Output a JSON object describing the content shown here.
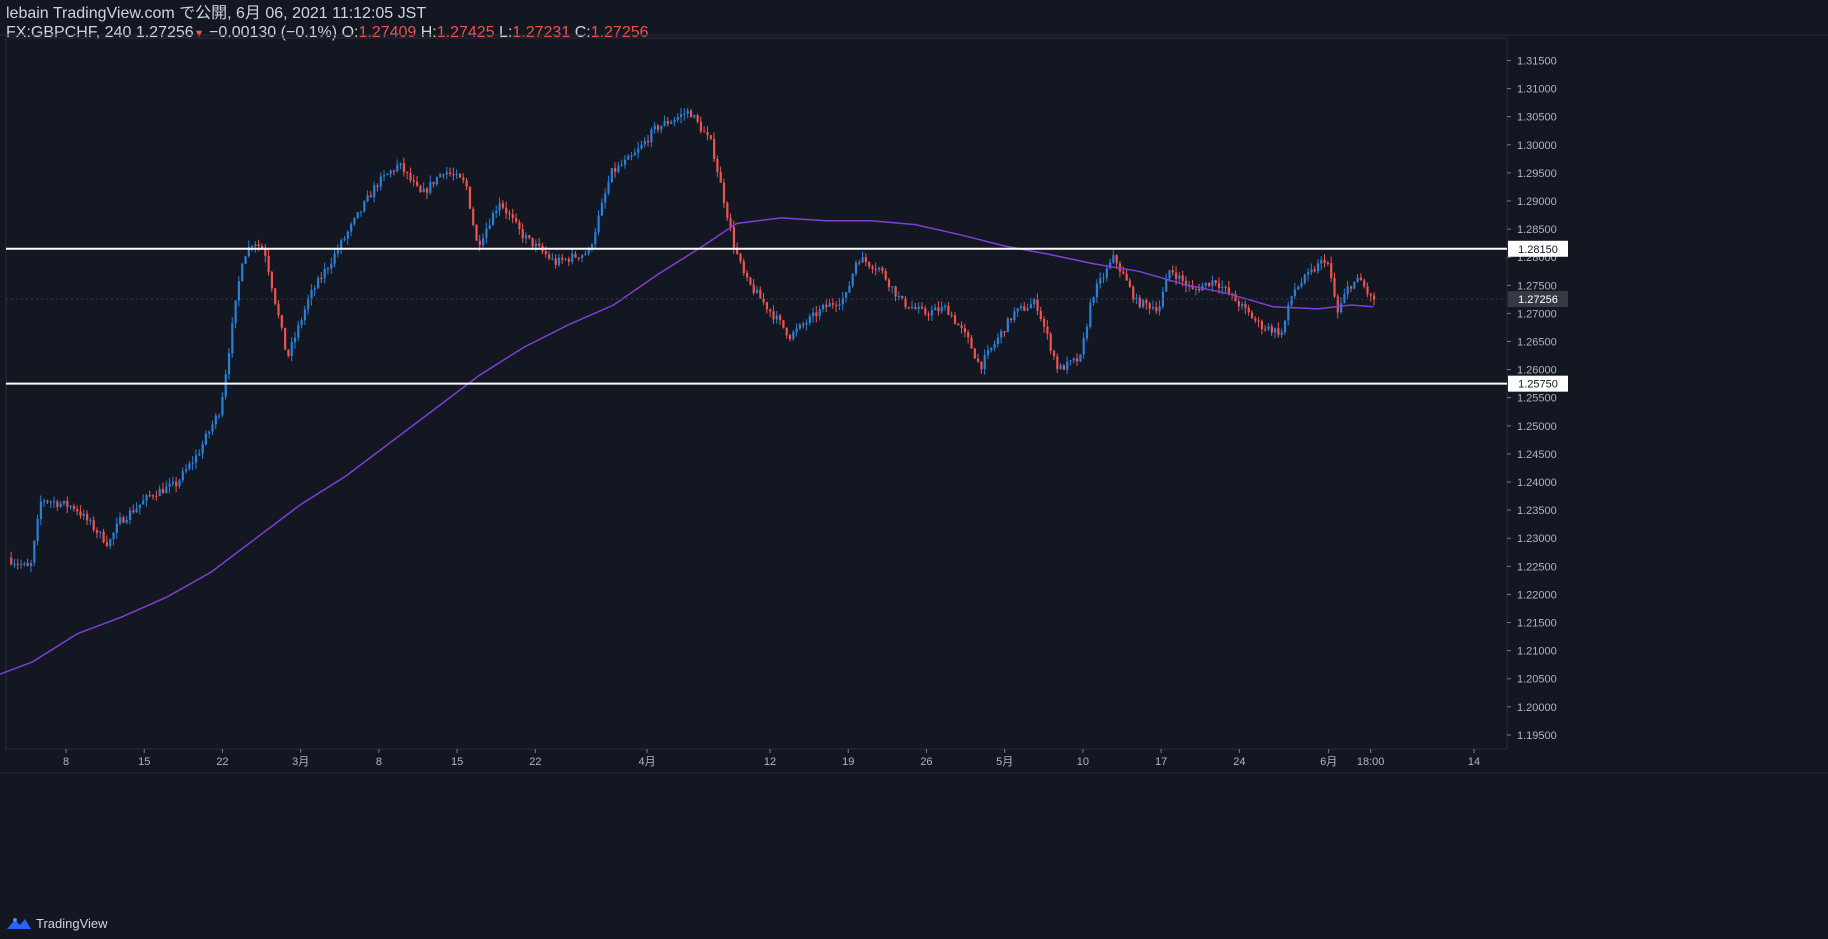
{
  "header": {
    "publish_line": "lebain TradingView.com で公開, 6月 06, 2021 11:12:05 JST",
    "symbol": "FX:GBPCHF, 240",
    "last": "1.27256",
    "change_arrow": "▼",
    "change": "−0.00130 (−0.1%)",
    "o_label": "O:",
    "o": "1.27409",
    "h_label": "H:",
    "h": "1.27425",
    "l_label": "L:",
    "l": "1.27231",
    "c_label": "C:",
    "c": "1.27256"
  },
  "footer": {
    "brand": "TradingView"
  },
  "colors": {
    "background": "#131722",
    "up": "#2a7fd8",
    "down": "#ef5350",
    "ma": "#7e3fd6",
    "axis_text": "#b2b5be",
    "hline": "#ffffff"
  },
  "chart_data": {
    "type": "candlestick",
    "ylim": [
      1.1925,
      1.319
    ],
    "ylabels": [
      "1.31500",
      "1.31000",
      "1.30500",
      "1.30000",
      "1.29500",
      "1.29000",
      "1.28500",
      "1.28000",
      "1.27500",
      "1.27000",
      "1.26500",
      "1.26000",
      "1.25500",
      "1.25000",
      "1.24500",
      "1.24000",
      "1.23500",
      "1.23000",
      "1.22500",
      "1.22000",
      "1.21500",
      "1.21000",
      "1.20500",
      "1.20000",
      "1.19500"
    ],
    "xticks": [
      {
        "label": "8",
        "date": "2021-02-08"
      },
      {
        "label": "15",
        "date": "2021-02-15"
      },
      {
        "label": "22",
        "date": "2021-02-22"
      },
      {
        "label": "3月",
        "date": "2021-03-01"
      },
      {
        "label": "8",
        "date": "2021-03-08"
      },
      {
        "label": "15",
        "date": "2021-03-15"
      },
      {
        "label": "22",
        "date": "2021-03-22"
      },
      {
        "label": "4月",
        "date": "2021-04-01"
      },
      {
        "label": "12",
        "date": "2021-04-12"
      },
      {
        "label": "19",
        "date": "2021-04-19"
      },
      {
        "label": "26",
        "date": "2021-04-26"
      },
      {
        "label": "5月",
        "date": "2021-05-03"
      },
      {
        "label": "10",
        "date": "2021-05-10"
      },
      {
        "label": "17",
        "date": "2021-05-17"
      },
      {
        "label": "24",
        "date": "2021-05-24"
      },
      {
        "label": "6月",
        "date": "2021-06-01"
      },
      {
        "label": "18:00",
        "date": "2021-06-04 18:00"
      },
      {
        "label": "14",
        "date": "2021-06-14"
      }
    ],
    "hlines": [
      {
        "value": 1.2815,
        "label": "1.28150"
      },
      {
        "value": 1.2575,
        "label": "1.25750"
      }
    ],
    "last_price": {
      "value": 1.27256,
      "label": "1.27256"
    },
    "price_path": [
      [
        "2021-02-03",
        1.2265
      ],
      [
        "2021-02-05",
        1.2245
      ],
      [
        "2021-02-06",
        1.237
      ],
      [
        "2021-02-09",
        1.2355
      ],
      [
        "2021-02-12",
        1.229
      ],
      [
        "2021-02-13",
        1.233
      ],
      [
        "2021-02-16",
        1.238
      ],
      [
        "2021-02-18",
        1.2395
      ],
      [
        "2021-02-20",
        1.245
      ],
      [
        "2021-02-22",
        1.253
      ],
      [
        "2021-02-24",
        1.28
      ],
      [
        "2021-02-25",
        1.283
      ],
      [
        "2021-02-26",
        1.281
      ],
      [
        "2021-02-28",
        1.262
      ],
      [
        "2021-03-02",
        1.273
      ],
      [
        "2021-03-05",
        1.283
      ],
      [
        "2021-03-08",
        1.293
      ],
      [
        "2021-03-10",
        1.2965
      ],
      [
        "2021-03-12",
        1.291
      ],
      [
        "2021-03-14",
        1.2955
      ],
      [
        "2021-03-16",
        1.293
      ],
      [
        "2021-03-17",
        1.282
      ],
      [
        "2021-03-19",
        1.29
      ],
      [
        "2021-03-21",
        1.284
      ],
      [
        "2021-03-24",
        1.279
      ],
      [
        "2021-03-27",
        1.281
      ],
      [
        "2021-03-29",
        1.295
      ],
      [
        "2021-03-31",
        1.298
      ],
      [
        "2021-04-02",
        1.303
      ],
      [
        "2021-04-05",
        1.306
      ],
      [
        "2021-04-07",
        1.3
      ],
      [
        "2021-04-09",
        1.282
      ],
      [
        "2021-04-10",
        1.276
      ],
      [
        "2021-04-12",
        1.271
      ],
      [
        "2021-04-14",
        1.266
      ],
      [
        "2021-04-17",
        1.271
      ],
      [
        "2021-04-19",
        1.273
      ],
      [
        "2021-04-20",
        1.28
      ],
      [
        "2021-04-22",
        1.278
      ],
      [
        "2021-04-24",
        1.272
      ],
      [
        "2021-04-26",
        1.27
      ],
      [
        "2021-04-28",
        1.271
      ],
      [
        "2021-04-30",
        1.265
      ],
      [
        "2021-05-01",
        1.2605
      ],
      [
        "2021-05-04",
        1.27
      ],
      [
        "2021-05-06",
        1.272
      ],
      [
        "2021-05-08",
        1.26
      ],
      [
        "2021-05-10",
        1.262
      ],
      [
        "2021-05-11",
        1.273
      ],
      [
        "2021-05-13",
        1.28
      ],
      [
        "2021-05-15",
        1.272
      ],
      [
        "2021-05-17",
        1.271
      ],
      [
        "2021-05-18",
        1.278
      ],
      [
        "2021-05-20",
        1.274
      ],
      [
        "2021-05-22",
        1.276
      ],
      [
        "2021-05-24",
        1.272
      ],
      [
        "2021-05-26",
        1.268
      ],
      [
        "2021-05-28",
        1.2665
      ],
      [
        "2021-05-29",
        1.274
      ],
      [
        "2021-05-31",
        1.278
      ],
      [
        "2021-06-01",
        1.28
      ],
      [
        "2021-06-02",
        1.27
      ],
      [
        "2021-06-03",
        1.275
      ],
      [
        "2021-06-04",
        1.276
      ],
      [
        "2021-06-05",
        1.27256
      ]
    ],
    "moving_average": [
      [
        "2021-02-01",
        1.205
      ],
      [
        "2021-02-05",
        1.208
      ],
      [
        "2021-02-09",
        1.213
      ],
      [
        "2021-02-13",
        1.216
      ],
      [
        "2021-02-17",
        1.2195
      ],
      [
        "2021-02-21",
        1.224
      ],
      [
        "2021-02-25",
        1.23
      ],
      [
        "2021-03-01",
        1.236
      ],
      [
        "2021-03-05",
        1.241
      ],
      [
        "2021-03-09",
        1.247
      ],
      [
        "2021-03-13",
        1.253
      ],
      [
        "2021-03-17",
        1.259
      ],
      [
        "2021-03-21",
        1.264
      ],
      [
        "2021-03-25",
        1.268
      ],
      [
        "2021-03-29",
        1.2715
      ],
      [
        "2021-04-02",
        1.277
      ],
      [
        "2021-04-06",
        1.282
      ],
      [
        "2021-04-09",
        1.286
      ],
      [
        "2021-04-13",
        1.287
      ],
      [
        "2021-04-17",
        1.2865
      ],
      [
        "2021-04-21",
        1.2865
      ],
      [
        "2021-04-25",
        1.2858
      ],
      [
        "2021-04-29",
        1.284
      ],
      [
        "2021-05-03",
        1.282
      ],
      [
        "2021-05-07",
        1.2805
      ],
      [
        "2021-05-11",
        1.2788
      ],
      [
        "2021-05-15",
        1.2775
      ],
      [
        "2021-05-19",
        1.2752
      ],
      [
        "2021-05-23",
        1.2735
      ],
      [
        "2021-05-27",
        1.2712
      ],
      [
        "2021-05-31",
        1.2708
      ],
      [
        "2021-06-03",
        1.2715
      ],
      [
        "2021-06-05",
        1.2712
      ]
    ]
  }
}
